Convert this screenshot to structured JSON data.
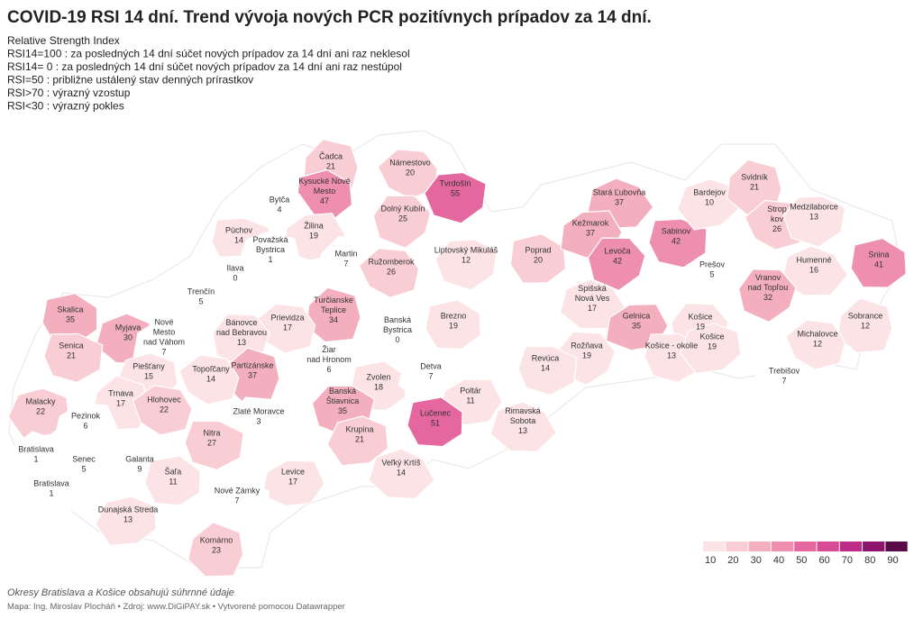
{
  "title": "COVID-19 RSI 14 dní. Trend vývoja nových PCR pozitívnych prípadov za 14 dní.",
  "description": [
    "Relative Strength Index",
    "RSI14=100 :  za posledných 14 dní súčet nových prípadov  za 14 dní ani raz neklesol",
    "RSI14= 0 :  za posledných 14 dní súčet nových prípadov za 14 dní ani raz nestúpol",
    "RSI=50 : približne ustálený stav denných prírastkov",
    "RSI>70 : výrazný vzostup",
    "RSI<30 : výrazný pokles"
  ],
  "districts": [
    {
      "name": [
        "Čadca"
      ],
      "value": 21
    },
    {
      "name": [
        "Námestovo"
      ],
      "value": 20
    },
    {
      "name": [
        "Tvrdošín"
      ],
      "value": 55
    },
    {
      "name": [
        "Kysucké Nové",
        "Mesto"
      ],
      "value": 47
    },
    {
      "name": [
        "Bytča"
      ],
      "value": 4
    },
    {
      "name": [
        "Žilina"
      ],
      "value": 19
    },
    {
      "name": [
        "Dolný Kubín"
      ],
      "value": 25
    },
    {
      "name": [
        "Púchov"
      ],
      "value": 14
    },
    {
      "name": [
        "Považská",
        "Bystrica"
      ],
      "value": 1
    },
    {
      "name": [
        "Martin"
      ],
      "value": 7
    },
    {
      "name": [
        "Ružomberok"
      ],
      "value": 26
    },
    {
      "name": [
        "Liptovský Mikuláš"
      ],
      "value": 12
    },
    {
      "name": [
        "Poprad"
      ],
      "value": 20
    },
    {
      "name": [
        "Stará Ľubovňa"
      ],
      "value": 37
    },
    {
      "name": [
        "Kežmarok"
      ],
      "value": 37
    },
    {
      "name": [
        "Levoča"
      ],
      "value": 42
    },
    {
      "name": [
        "Sabinov"
      ],
      "value": 42
    },
    {
      "name": [
        "Bardejov"
      ],
      "value": 10
    },
    {
      "name": [
        "Svidník"
      ],
      "value": 21
    },
    {
      "name": [
        "Strop",
        "kov"
      ],
      "value": 26
    },
    {
      "name": [
        "Medzilaborce"
      ],
      "value": 13
    },
    {
      "name": [
        "Snina"
      ],
      "value": 41
    },
    {
      "name": [
        "Humenné"
      ],
      "value": 16
    },
    {
      "name": [
        "Prešov"
      ],
      "value": 5
    },
    {
      "name": [
        "Vranov",
        "nad Topľou"
      ],
      "value": 32
    },
    {
      "name": [
        "Ilava"
      ],
      "value": 0
    },
    {
      "name": [
        "Trenčín"
      ],
      "value": 5
    },
    {
      "name": [
        "Turčianske",
        "Teplice"
      ],
      "value": 34
    },
    {
      "name": [
        "Prievidza"
      ],
      "value": 17
    },
    {
      "name": [
        "Banská",
        "Bystrica"
      ],
      "value": 0
    },
    {
      "name": [
        "Brezno"
      ],
      "value": 19
    },
    {
      "name": [
        "Spišská",
        "Nová Ves"
      ],
      "value": 17
    },
    {
      "name": [
        "Gelnica"
      ],
      "value": 35
    },
    {
      "name": [
        "Košice"
      ],
      "value": 19
    },
    {
      "name": [
        "Košice - okolie"
      ],
      "value": 13
    },
    {
      "name": [
        "Košice"
      ],
      "value": 19
    },
    {
      "name": [
        "Sobrance"
      ],
      "value": 12
    },
    {
      "name": [
        "Michalovce"
      ],
      "value": 12
    },
    {
      "name": [
        "Trebišov"
      ],
      "value": 7
    },
    {
      "name": [
        "Skalica"
      ],
      "value": 35
    },
    {
      "name": [
        "Myjava"
      ],
      "value": 30
    },
    {
      "name": [
        "Nové",
        "Mesto",
        "nad Váhom"
      ],
      "value": 7
    },
    {
      "name": [
        "Bánovce",
        "nad Bebravou"
      ],
      "value": 13
    },
    {
      "name": [
        "Senica"
      ],
      "value": 21
    },
    {
      "name": [
        "Piešťany"
      ],
      "value": 15
    },
    {
      "name": [
        "Partizánske"
      ],
      "value": 37
    },
    {
      "name": [
        "Topoľčany"
      ],
      "value": 14
    },
    {
      "name": [
        "Žiar",
        "nad Hronom"
      ],
      "value": 6
    },
    {
      "name": [
        "Zvolen"
      ],
      "value": 18
    },
    {
      "name": [
        "Detva"
      ],
      "value": 7
    },
    {
      "name": [
        "Poltár"
      ],
      "value": 11
    },
    {
      "name": [
        "Rožňava"
      ],
      "value": 19
    },
    {
      "name": [
        "Revúca"
      ],
      "value": 14
    },
    {
      "name": [
        "Malacky"
      ],
      "value": 22
    },
    {
      "name": [
        "Trnava"
      ],
      "value": 17
    },
    {
      "name": [
        "Hlohovec"
      ],
      "value": 22
    },
    {
      "name": [
        "Banská",
        "Štiavnica"
      ],
      "value": 35
    },
    {
      "name": [
        "Lučenec"
      ],
      "value": 51
    },
    {
      "name": [
        "Rimavská",
        "Sobota"
      ],
      "value": 13
    },
    {
      "name": [
        "Pezinok"
      ],
      "value": 6
    },
    {
      "name": [
        "Zlaté Moravce"
      ],
      "value": 3
    },
    {
      "name": [
        "Nitra"
      ],
      "value": 27
    },
    {
      "name": [
        "Krupina"
      ],
      "value": 21
    },
    {
      "name": [
        "Bratislava"
      ],
      "value": 1
    },
    {
      "name": [
        "Senec"
      ],
      "value": 5
    },
    {
      "name": [
        "Galanta"
      ],
      "value": 9
    },
    {
      "name": [
        "Šaľa"
      ],
      "value": 11
    },
    {
      "name": [
        "Veľký Krtíš"
      ],
      "value": 14
    },
    {
      "name": [
        "Levice"
      ],
      "value": 17
    },
    {
      "name": [
        "Bratislava"
      ],
      "value": 1
    },
    {
      "name": [
        "Nové Zámky"
      ],
      "value": 7
    },
    {
      "name": [
        "Dunajská Streda"
      ],
      "value": 13
    },
    {
      "name": [
        "Komárno"
      ],
      "value": 23
    }
  ],
  "legend": {
    "ticks": [
      10,
      20,
      30,
      40,
      50,
      60,
      70,
      80,
      90
    ],
    "colors": [
      "#fce3e6",
      "#f9cdd4",
      "#f4afbe",
      "#ee8fb0",
      "#e4679f",
      "#d84b95",
      "#bd2c87",
      "#8e156c",
      "#5a0b48"
    ]
  },
  "footer": {
    "note": "Okresy Bratislava a Košice obsahujú súhrnné údaje",
    "credit": "Mapa: Ing. Miroslav Plocháň • Zdroj: www.DiGiPAY.sk • Vytvorené pomocou Datawrapper"
  }
}
